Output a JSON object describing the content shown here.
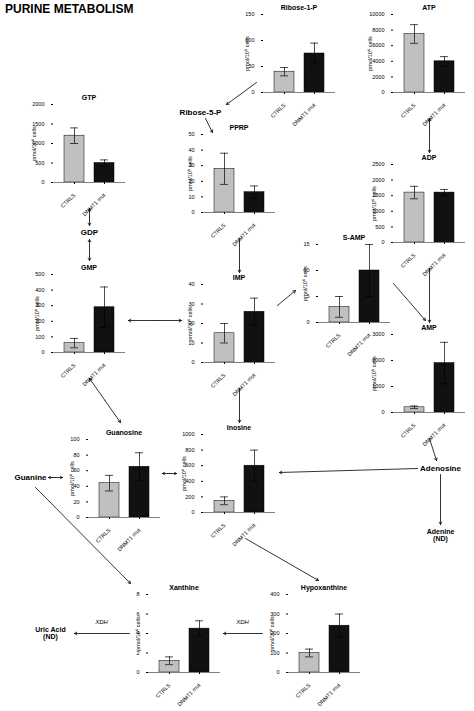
{
  "title": "PURINE METABOLISM",
  "annotations": [
    "GDP",
    "Ribose-5-P",
    "Guanine",
    "Uric Acid\n(ND)",
    "Adenosine",
    "Adenine\n(ND)",
    "XDH",
    "XDH"
  ],
  "chart_data": [
    {
      "type": "bar",
      "title": "GTP",
      "categories": [
        "CTRLS",
        "DNMT1 mut"
      ],
      "values": [
        1200,
        500
      ],
      "errors": [
        200,
        80
      ],
      "colors": [
        "#c0c0c0",
        "#111111"
      ],
      "ylabel": "pmol/10⁶ cells",
      "ylim": [
        0,
        2000
      ],
      "yticks": [
        0,
        500,
        1000,
        1500,
        2000
      ]
    },
    {
      "type": "bar",
      "title": "GMP",
      "categories": [
        "CTRLS",
        "DNMT1 mut"
      ],
      "values": [
        60,
        290
      ],
      "errors": [
        30,
        130
      ],
      "colors": [
        "#c0c0c0",
        "#111111"
      ],
      "ylabel": "pmol/10⁶ cells",
      "ylim": [
        0,
        500
      ],
      "yticks": [
        0,
        100,
        200,
        300,
        400,
        500
      ]
    },
    {
      "type": "bar",
      "title": "Guanosine",
      "categories": [
        "CTRLS",
        "DNMT1 mut"
      ],
      "values": [
        44,
        65
      ],
      "errors": [
        10,
        18
      ],
      "colors": [
        "#c0c0c0",
        "#111111"
      ],
      "ylabel": "pmol/10⁶ cells",
      "ylim": [
        0,
        100
      ],
      "yticks": [
        0,
        20,
        40,
        60,
        80,
        100
      ]
    },
    {
      "type": "bar",
      "title": "Xanthine",
      "categories": [
        "CTRLS",
        "DNMT1 mut"
      ],
      "values": [
        1.2,
        4.5
      ],
      "errors": [
        0.4,
        0.8
      ],
      "colors": [
        "#c0c0c0",
        "#111111"
      ],
      "ylabel": "pmol/10⁶ cells",
      "ylim": [
        0,
        8
      ],
      "yticks": [
        0,
        2,
        4,
        6,
        8
      ]
    },
    {
      "type": "bar",
      "title": "Ribose-1-P",
      "categories": [
        "CTRLS",
        "DNMT1 mut"
      ],
      "values": [
        40,
        75
      ],
      "errors": [
        8,
        20
      ],
      "colors": [
        "#c0c0c0",
        "#111111"
      ],
      "ylabel": "pmol/10⁶ cells",
      "ylim": [
        0,
        150
      ],
      "yticks": [
        0,
        50,
        100,
        150
      ]
    },
    {
      "type": "bar",
      "title": "PPRP",
      "categories": [
        "CTRLS",
        "DNMT1 mut"
      ],
      "values": [
        28,
        13
      ],
      "errors": [
        10,
        4
      ],
      "colors": [
        "#c0c0c0",
        "#111111"
      ],
      "ylabel": "pmol/10⁶ cells",
      "ylim": [
        0,
        50
      ],
      "yticks": [
        0,
        10,
        20,
        30,
        40,
        50
      ]
    },
    {
      "type": "bar",
      "title": "IMP",
      "categories": [
        "CTRLS",
        "DNMT1 mut"
      ],
      "values": [
        15,
        26
      ],
      "errors": [
        5,
        7
      ],
      "colors": [
        "#c0c0c0",
        "#111111"
      ],
      "ylabel": "pmol/10⁶ cells",
      "ylim": [
        0,
        40
      ],
      "yticks": [
        0,
        10,
        20,
        30,
        40
      ]
    },
    {
      "type": "bar",
      "title": "Inosine",
      "categories": [
        "CTRLS",
        "DNMT1 mut"
      ],
      "values": [
        150,
        600
      ],
      "errors": [
        50,
        200
      ],
      "colors": [
        "#c0c0c0",
        "#111111"
      ],
      "ylabel": "pmol/10⁶ cells",
      "ylim": [
        0,
        1000
      ],
      "yticks": [
        0,
        200,
        400,
        600,
        800,
        1000
      ]
    },
    {
      "type": "bar",
      "title": "Hypoxanthine",
      "categories": [
        "CTRLS",
        "DNMT1 mut"
      ],
      "values": [
        100,
        240
      ],
      "errors": [
        20,
        60
      ],
      "colors": [
        "#c0c0c0",
        "#111111"
      ],
      "ylabel": "pmol/10⁶ cells",
      "ylim": [
        0,
        400
      ],
      "yticks": [
        0,
        100,
        200,
        300,
        400
      ]
    },
    {
      "type": "bar",
      "title": "S-AMP",
      "categories": [
        "CTRLS",
        "DNMT1 mut"
      ],
      "values": [
        3,
        10
      ],
      "errors": [
        2,
        5
      ],
      "colors": [
        "#c0c0c0",
        "#111111"
      ],
      "ylabel": "pmol/10⁶ cells",
      "ylim": [
        0,
        15
      ],
      "yticks": [
        0,
        5,
        10,
        15
      ]
    },
    {
      "type": "bar",
      "title": "ATP",
      "categories": [
        "CTRLS",
        "DNMT1 mut"
      ],
      "values": [
        7500,
        4000
      ],
      "errors": [
        1200,
        600
      ],
      "colors": [
        "#c0c0c0",
        "#111111"
      ],
      "ylabel": "pmol/10⁶ cells",
      "ylim": [
        0,
        10000
      ],
      "yticks": [
        0,
        2000,
        4000,
        6000,
        8000,
        10000
      ]
    },
    {
      "type": "bar",
      "title": "ADP",
      "categories": [
        "CTRLS",
        "DNMT1 mut"
      ],
      "values": [
        1600,
        1600
      ],
      "errors": [
        200,
        100
      ],
      "colors": [
        "#c0c0c0",
        "#111111"
      ],
      "ylabel": "pmol/10⁶ cells",
      "ylim": [
        0,
        2500
      ],
      "yticks": [
        0,
        500,
        1000,
        1500,
        2000,
        2500
      ]
    },
    {
      "type": "bar",
      "title": "AMP",
      "categories": [
        "CTRLS",
        "DNMT1 mut"
      ],
      "values": [
        200,
        1900
      ],
      "errors": [
        50,
        800
      ],
      "colors": [
        "#c0c0c0",
        "#111111"
      ],
      "ylabel": "pmol/10⁶ cells",
      "ylim": [
        0,
        3000
      ],
      "yticks": [
        0,
        1000,
        2000,
        3000
      ]
    }
  ]
}
